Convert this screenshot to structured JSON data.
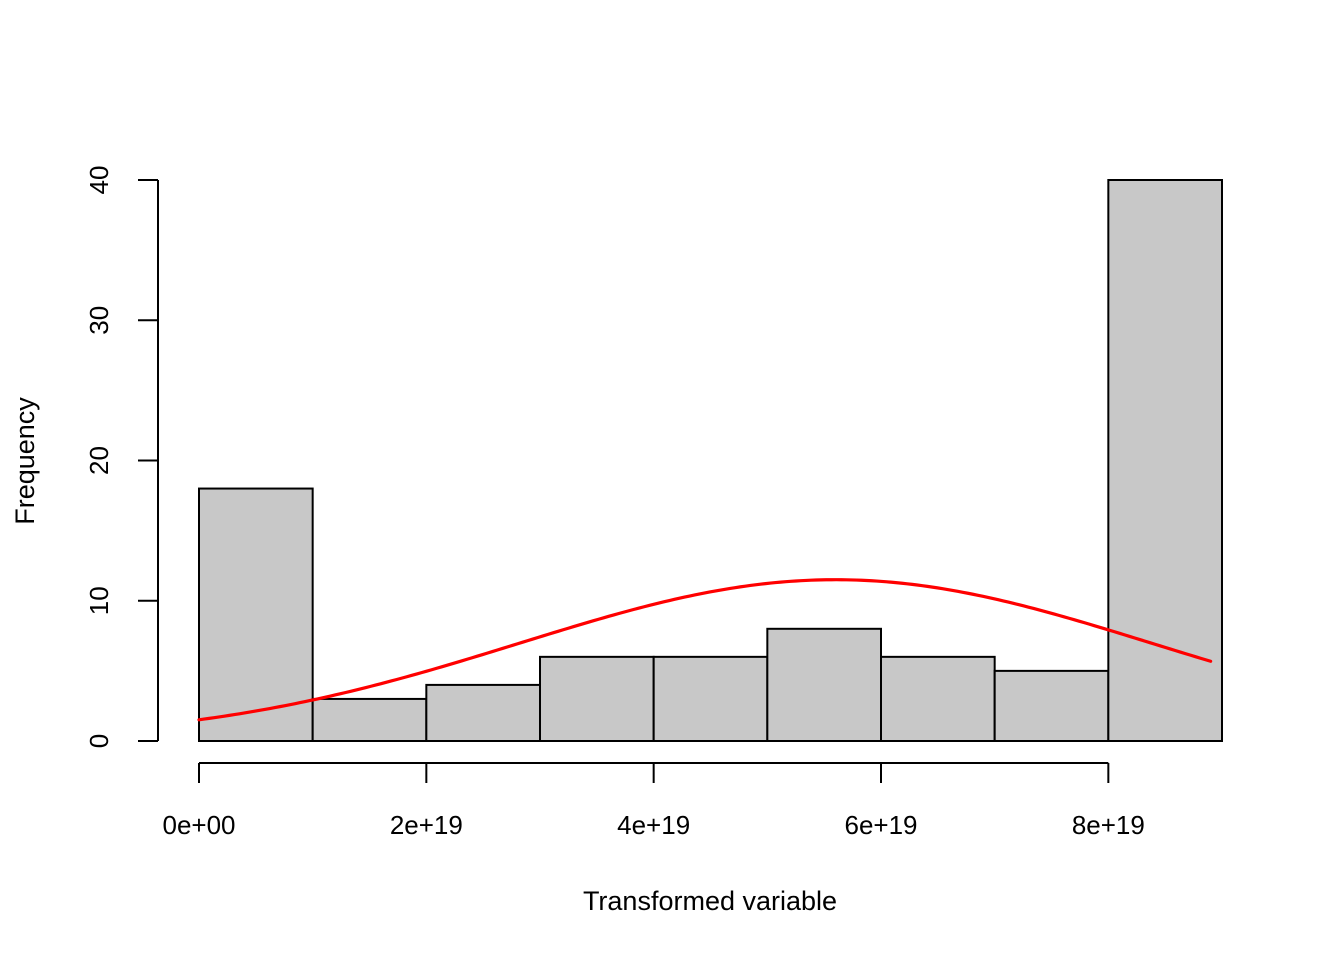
{
  "chart_data": {
    "type": "bar",
    "title": "",
    "xlabel": "Transformed variable",
    "ylabel": "Frequency",
    "bins": [
      {
        "x0": 0,
        "x1": 1e+19,
        "count": 18
      },
      {
        "x0": 1e+19,
        "x1": 2e+19,
        "count": 3
      },
      {
        "x0": 2e+19,
        "x1": 3e+19,
        "count": 4
      },
      {
        "x0": 3e+19,
        "x1": 4e+19,
        "count": 6
      },
      {
        "x0": 4e+19,
        "x1": 5e+19,
        "count": 6
      },
      {
        "x0": 5e+19,
        "x1": 6e+19,
        "count": 8
      },
      {
        "x0": 6e+19,
        "x1": 7e+19,
        "count": 6
      },
      {
        "x0": 7e+19,
        "x1": 8e+19,
        "count": 5
      },
      {
        "x0": 8e+19,
        "x1": 9e+19,
        "count": 40
      }
    ],
    "x_ticks": [
      {
        "value": 0,
        "label": "0e+00"
      },
      {
        "value": 2e+19,
        "label": "2e+19"
      },
      {
        "value": 4e+19,
        "label": "4e+19"
      },
      {
        "value": 6e+19,
        "label": "6e+19"
      },
      {
        "value": 8e+19,
        "label": "8e+19"
      }
    ],
    "y_ticks": [
      {
        "value": 0,
        "label": "0"
      },
      {
        "value": 10,
        "label": "10"
      },
      {
        "value": 20,
        "label": "20"
      },
      {
        "value": 30,
        "label": "30"
      },
      {
        "value": 40,
        "label": "40"
      }
    ],
    "xlim": [
      0,
      9e+19
    ],
    "ylim": [
      0,
      40
    ],
    "grid": false,
    "overlay_curve": {
      "type": "normal-density",
      "color": "#ff0000",
      "mean": 5.6e+19,
      "sd": 2.78e+19,
      "peak": 11.5,
      "x_range": [
        0,
        8.9e+19
      ]
    },
    "colors": {
      "bar_fill": "#c8c8c8",
      "bar_stroke": "#000000",
      "curve": "#ff0000"
    }
  }
}
